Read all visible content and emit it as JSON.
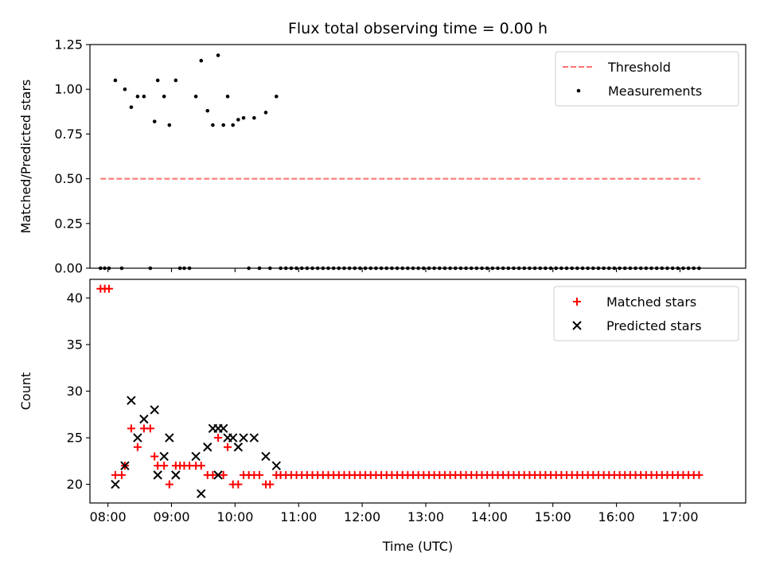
{
  "chart_data": [
    {
      "type": "scatter",
      "title": "Flux total observing time = 0.00 h",
      "xlabel": "",
      "ylabel": "Matched/Predicted stars",
      "xlim": [
        "07:43",
        "18:02"
      ],
      "ylim": [
        0.0,
        1.25
      ],
      "yticks": [
        0.0,
        0.25,
        0.5,
        0.75,
        1.0,
        1.25
      ],
      "ytick_labels": [
        "0.00",
        "0.25",
        "0.50",
        "0.75",
        "1.00",
        "1.25"
      ],
      "xticks": [
        "08:00",
        "09:00",
        "10:00",
        "11:00",
        "12:00",
        "13:00",
        "14:00",
        "15:00",
        "16:00",
        "17:00"
      ],
      "show_xtick_labels": false,
      "legend_position": "upper right",
      "grid": false,
      "threshold": {
        "name": "Threshold",
        "value": 0.5,
        "x_start": "07:53",
        "x_end": "17:19",
        "color": "#ff7070",
        "style": "dashed"
      },
      "series": [
        {
          "name": "Measurements",
          "marker": "dot",
          "color": "#000000",
          "points": [
            [
              "07:53",
              0.0
            ],
            [
              "07:57",
              0.0
            ],
            [
              "08:01",
              0.0
            ],
            [
              "08:07",
              1.05
            ],
            [
              "08:13",
              0.0
            ],
            [
              "08:16",
              1.0
            ],
            [
              "08:22",
              0.9
            ],
            [
              "08:28",
              0.96
            ],
            [
              "08:34",
              0.96
            ],
            [
              "08:40",
              0.0
            ],
            [
              "08:44",
              0.82
            ],
            [
              "08:47",
              1.05
            ],
            [
              "08:53",
              0.96
            ],
            [
              "08:58",
              0.8
            ],
            [
              "09:04",
              1.05
            ],
            [
              "09:08",
              0.0
            ],
            [
              "09:12",
              0.0
            ],
            [
              "09:17",
              0.0
            ],
            [
              "09:23",
              0.96
            ],
            [
              "09:28",
              1.16
            ],
            [
              "09:34",
              0.88
            ],
            [
              "09:39",
              0.8
            ],
            [
              "09:44",
              1.19
            ],
            [
              "09:49",
              0.8
            ],
            [
              "09:53",
              0.96
            ],
            [
              "09:58",
              0.8
            ],
            [
              "10:03",
              0.83
            ],
            [
              "10:08",
              0.84
            ],
            [
              "10:13",
              0.0
            ],
            [
              "10:18",
              0.84
            ],
            [
              "10:23",
              0.0
            ],
            [
              "10:29",
              0.87
            ],
            [
              "10:33",
              0.0
            ],
            [
              "10:39",
              0.96
            ],
            [
              "10:43",
              0.0
            ],
            [
              "10:48",
              0.0
            ],
            [
              "10:53",
              0.0
            ],
            [
              "10:58",
              0.0
            ],
            [
              "11:03",
              0.0
            ],
            [
              "11:08",
              0.0
            ],
            [
              "11:13",
              0.0
            ],
            [
              "11:18",
              0.0
            ],
            [
              "11:23",
              0.0
            ],
            [
              "11:28",
              0.0
            ],
            [
              "11:33",
              0.0
            ],
            [
              "11:38",
              0.0
            ],
            [
              "11:43",
              0.0
            ],
            [
              "11:48",
              0.0
            ],
            [
              "11:53",
              0.0
            ],
            [
              "11:58",
              0.0
            ],
            [
              "12:03",
              0.0
            ],
            [
              "12:08",
              0.0
            ],
            [
              "12:13",
              0.0
            ],
            [
              "12:18",
              0.0
            ],
            [
              "12:23",
              0.0
            ],
            [
              "12:28",
              0.0
            ],
            [
              "12:33",
              0.0
            ],
            [
              "12:38",
              0.0
            ],
            [
              "12:43",
              0.0
            ],
            [
              "12:48",
              0.0
            ],
            [
              "12:53",
              0.0
            ],
            [
              "12:58",
              0.0
            ],
            [
              "13:03",
              0.0
            ],
            [
              "13:08",
              0.0
            ],
            [
              "13:13",
              0.0
            ],
            [
              "13:18",
              0.0
            ],
            [
              "13:23",
              0.0
            ],
            [
              "13:28",
              0.0
            ],
            [
              "13:33",
              0.0
            ],
            [
              "13:38",
              0.0
            ],
            [
              "13:43",
              0.0
            ],
            [
              "13:48",
              0.0
            ],
            [
              "13:53",
              0.0
            ],
            [
              "13:58",
              0.0
            ],
            [
              "14:03",
              0.0
            ],
            [
              "14:08",
              0.0
            ],
            [
              "14:13",
              0.0
            ],
            [
              "14:18",
              0.0
            ],
            [
              "14:23",
              0.0
            ],
            [
              "14:28",
              0.0
            ],
            [
              "14:33",
              0.0
            ],
            [
              "14:38",
              0.0
            ],
            [
              "14:43",
              0.0
            ],
            [
              "14:48",
              0.0
            ],
            [
              "14:53",
              0.0
            ],
            [
              "14:58",
              0.0
            ],
            [
              "15:03",
              0.0
            ],
            [
              "15:08",
              0.0
            ],
            [
              "15:13",
              0.0
            ],
            [
              "15:18",
              0.0
            ],
            [
              "15:23",
              0.0
            ],
            [
              "15:28",
              0.0
            ],
            [
              "15:33",
              0.0
            ],
            [
              "15:38",
              0.0
            ],
            [
              "15:43",
              0.0
            ],
            [
              "15:48",
              0.0
            ],
            [
              "15:53",
              0.0
            ],
            [
              "15:58",
              0.0
            ],
            [
              "16:03",
              0.0
            ],
            [
              "16:08",
              0.0
            ],
            [
              "16:13",
              0.0
            ],
            [
              "16:18",
              0.0
            ],
            [
              "16:23",
              0.0
            ],
            [
              "16:28",
              0.0
            ],
            [
              "16:33",
              0.0
            ],
            [
              "16:38",
              0.0
            ],
            [
              "16:43",
              0.0
            ],
            [
              "16:48",
              0.0
            ],
            [
              "16:53",
              0.0
            ],
            [
              "16:58",
              0.0
            ],
            [
              "17:03",
              0.0
            ],
            [
              "17:08",
              0.0
            ],
            [
              "17:13",
              0.0
            ],
            [
              "17:18",
              0.0
            ]
          ]
        }
      ]
    },
    {
      "type": "scatter",
      "title": "",
      "xlabel": "Time (UTC)",
      "ylabel": "Count",
      "xlim": [
        "07:43",
        "18:02"
      ],
      "ylim": [
        18,
        42
      ],
      "yticks": [
        20,
        25,
        30,
        35,
        40
      ],
      "ytick_labels": [
        "20",
        "25",
        "30",
        "35",
        "40"
      ],
      "xticks": [
        "08:00",
        "09:00",
        "10:00",
        "11:00",
        "12:00",
        "13:00",
        "14:00",
        "15:00",
        "16:00",
        "17:00"
      ],
      "show_xtick_labels": true,
      "legend_position": "upper right",
      "grid": false,
      "series": [
        {
          "name": "Matched stars",
          "marker": "plus",
          "color": "#ff0000",
          "points": [
            [
              "07:53",
              41
            ],
            [
              "07:57",
              41
            ],
            [
              "08:01",
              41
            ],
            [
              "08:07",
              21
            ],
            [
              "08:13",
              21
            ],
            [
              "08:16",
              22
            ],
            [
              "08:22",
              26
            ],
            [
              "08:28",
              24
            ],
            [
              "08:34",
              26
            ],
            [
              "08:40",
              26
            ],
            [
              "08:44",
              23
            ],
            [
              "08:47",
              22
            ],
            [
              "08:53",
              22
            ],
            [
              "08:58",
              20
            ],
            [
              "09:04",
              22
            ],
            [
              "09:08",
              22
            ],
            [
              "09:12",
              22
            ],
            [
              "09:17",
              22
            ],
            [
              "09:23",
              22
            ],
            [
              "09:28",
              22
            ],
            [
              "09:34",
              21
            ],
            [
              "09:39",
              21
            ],
            [
              "09:44",
              25
            ],
            [
              "09:49",
              21
            ],
            [
              "09:53",
              24
            ],
            [
              "09:58",
              20
            ],
            [
              "10:03",
              20
            ],
            [
              "10:08",
              21
            ],
            [
              "10:13",
              21
            ],
            [
              "10:18",
              21
            ],
            [
              "10:23",
              21
            ],
            [
              "10:29",
              20
            ],
            [
              "10:33",
              20
            ],
            [
              "10:39",
              21
            ],
            [
              "10:43",
              21
            ],
            [
              "10:48",
              21
            ],
            [
              "10:53",
              21
            ],
            [
              "10:58",
              21
            ],
            [
              "11:03",
              21
            ],
            [
              "11:08",
              21
            ],
            [
              "11:13",
              21
            ],
            [
              "11:18",
              21
            ],
            [
              "11:23",
              21
            ],
            [
              "11:28",
              21
            ],
            [
              "11:33",
              21
            ],
            [
              "11:38",
              21
            ],
            [
              "11:43",
              21
            ],
            [
              "11:48",
              21
            ],
            [
              "11:53",
              21
            ],
            [
              "11:58",
              21
            ],
            [
              "12:03",
              21
            ],
            [
              "12:08",
              21
            ],
            [
              "12:13",
              21
            ],
            [
              "12:18",
              21
            ],
            [
              "12:23",
              21
            ],
            [
              "12:28",
              21
            ],
            [
              "12:33",
              21
            ],
            [
              "12:38",
              21
            ],
            [
              "12:43",
              21
            ],
            [
              "12:48",
              21
            ],
            [
              "12:53",
              21
            ],
            [
              "12:58",
              21
            ],
            [
              "13:03",
              21
            ],
            [
              "13:08",
              21
            ],
            [
              "13:13",
              21
            ],
            [
              "13:18",
              21
            ],
            [
              "13:23",
              21
            ],
            [
              "13:28",
              21
            ],
            [
              "13:33",
              21
            ],
            [
              "13:38",
              21
            ],
            [
              "13:43",
              21
            ],
            [
              "13:48",
              21
            ],
            [
              "13:53",
              21
            ],
            [
              "13:58",
              21
            ],
            [
              "14:03",
              21
            ],
            [
              "14:08",
              21
            ],
            [
              "14:13",
              21
            ],
            [
              "14:18",
              21
            ],
            [
              "14:23",
              21
            ],
            [
              "14:28",
              21
            ],
            [
              "14:33",
              21
            ],
            [
              "14:38",
              21
            ],
            [
              "14:43",
              21
            ],
            [
              "14:48",
              21
            ],
            [
              "14:53",
              21
            ],
            [
              "14:58",
              21
            ],
            [
              "15:03",
              21
            ],
            [
              "15:08",
              21
            ],
            [
              "15:13",
              21
            ],
            [
              "15:18",
              21
            ],
            [
              "15:23",
              21
            ],
            [
              "15:28",
              21
            ],
            [
              "15:33",
              21
            ],
            [
              "15:38",
              21
            ],
            [
              "15:43",
              21
            ],
            [
              "15:48",
              21
            ],
            [
              "15:53",
              21
            ],
            [
              "15:58",
              21
            ],
            [
              "16:03",
              21
            ],
            [
              "16:08",
              21
            ],
            [
              "16:13",
              21
            ],
            [
              "16:18",
              21
            ],
            [
              "16:23",
              21
            ],
            [
              "16:28",
              21
            ],
            [
              "16:33",
              21
            ],
            [
              "16:38",
              21
            ],
            [
              "16:43",
              21
            ],
            [
              "16:48",
              21
            ],
            [
              "16:53",
              21
            ],
            [
              "16:58",
              21
            ],
            [
              "17:03",
              21
            ],
            [
              "17:08",
              21
            ],
            [
              "17:13",
              21
            ],
            [
              "17:18",
              21
            ]
          ]
        },
        {
          "name": "Predicted stars",
          "marker": "x",
          "color": "#000000",
          "points": [
            [
              "08:07",
              20
            ],
            [
              "08:16",
              22
            ],
            [
              "08:22",
              29
            ],
            [
              "08:28",
              25
            ],
            [
              "08:34",
              27
            ],
            [
              "08:44",
              28
            ],
            [
              "08:47",
              21
            ],
            [
              "08:53",
              23
            ],
            [
              "08:58",
              25
            ],
            [
              "09:04",
              21
            ],
            [
              "09:23",
              23
            ],
            [
              "09:28",
              19
            ],
            [
              "09:34",
              24
            ],
            [
              "09:39",
              26
            ],
            [
              "09:44",
              21
            ],
            [
              "09:44",
              26
            ],
            [
              "09:49",
              26
            ],
            [
              "09:53",
              25
            ],
            [
              "09:58",
              25
            ],
            [
              "10:03",
              24
            ],
            [
              "10:08",
              25
            ],
            [
              "10:18",
              25
            ],
            [
              "10:29",
              23
            ],
            [
              "10:39",
              22
            ]
          ]
        }
      ]
    }
  ]
}
